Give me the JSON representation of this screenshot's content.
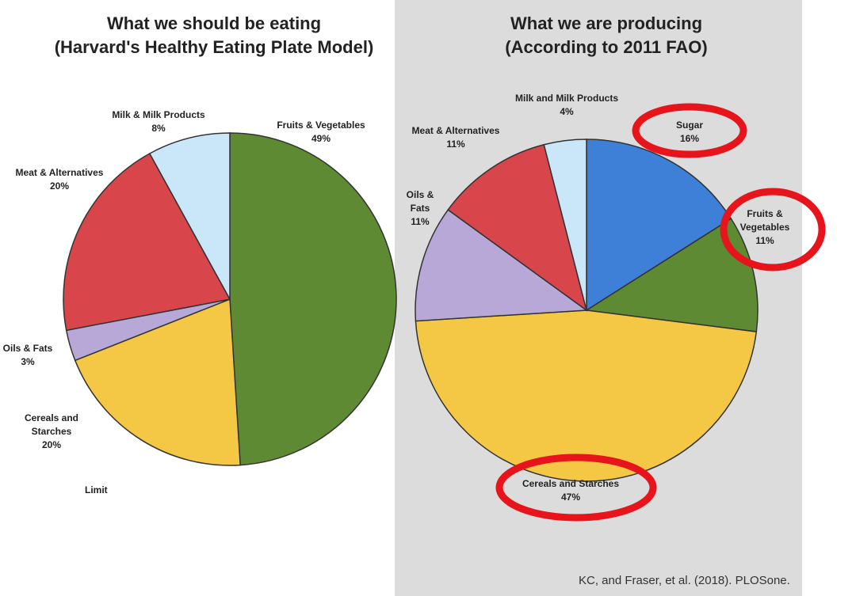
{
  "chart_data": [
    {
      "type": "pie",
      "title": "What we should be eating",
      "subtitle": "(Harvard's Healthy Eating Plate Model)",
      "slices": [
        {
          "label": "Fruits & Vegetables",
          "value": 49,
          "pct": "49%",
          "color": "#5e8a34"
        },
        {
          "label": "Cereals and Starches",
          "value": 20,
          "pct": "20%",
          "color": "#f4c744"
        },
        {
          "label": "Oils & Fats",
          "value": 3,
          "pct": "3%",
          "color": "#b7a8d8"
        },
        {
          "label": "Meat & Alternatives",
          "value": 20,
          "pct": "20%",
          "color": "#d8454a"
        },
        {
          "label": "Milk & Milk Products",
          "value": 8,
          "pct": "8%",
          "color": "#c9e7f9"
        }
      ],
      "note": "Limit"
    },
    {
      "type": "pie",
      "title": "What we are producing",
      "subtitle": "(According to 2011 FAO)",
      "slices": [
        {
          "label": "Sugar",
          "value": 16,
          "pct": "16%",
          "color": "#3e7fd8",
          "highlighted": true
        },
        {
          "label": "Fruits & Vegetables",
          "value": 11,
          "pct": "11%",
          "color": "#5e8a34",
          "highlighted": true
        },
        {
          "label": "Cereals and Starches",
          "value": 47,
          "pct": "47%",
          "color": "#f4c744",
          "highlighted": true
        },
        {
          "label": "Oils & Fats",
          "value": 11,
          "pct": "11%",
          "color": "#b7a8d8"
        },
        {
          "label": "Meat & Alternatives",
          "value": 11,
          "pct": "11%",
          "color": "#d8454a"
        },
        {
          "label": "Milk and Milk Products",
          "value": 4,
          "pct": "4%",
          "color": "#c9e7f9"
        }
      ]
    }
  ],
  "source": "KC, and Fraser, et al. (2018). PLOSone.",
  "highlight_color": "#e8141c"
}
